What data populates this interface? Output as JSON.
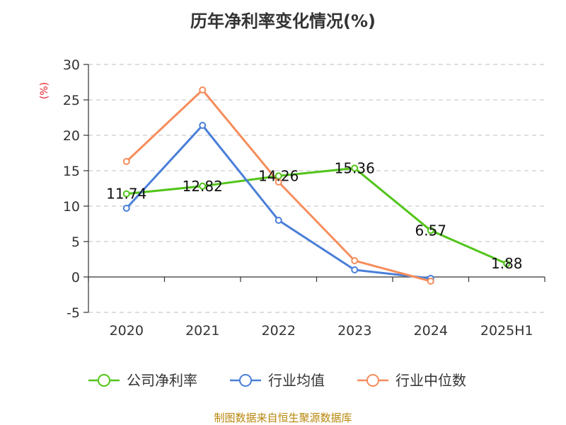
{
  "source": "制图数据来自恒生聚源数据库",
  "chart_data": {
    "type": "line",
    "title": "历年净利率变化情况(%)",
    "ylabel": "(%)",
    "xlabel": "",
    "categories": [
      "2020",
      "2021",
      "2022",
      "2023",
      "2024",
      "2025H1"
    ],
    "ylim": [
      -5,
      30
    ],
    "yticks": [
      -5,
      0,
      5,
      10,
      15,
      20,
      25,
      30
    ],
    "grid": true,
    "legend_position": "bottom",
    "series": [
      {
        "name": "公司净利率",
        "color": "#52c41a",
        "values": [
          11.74,
          12.82,
          14.26,
          15.36,
          6.57,
          1.88
        ],
        "labels": [
          "11.74",
          "12.82",
          "14.26",
          "15.36",
          "6.57",
          "1.88"
        ]
      },
      {
        "name": "行业均值",
        "color": "#4a7fd9",
        "values": [
          9.7,
          21.4,
          8.0,
          1.0,
          -0.2,
          null
        ]
      },
      {
        "name": "行业中位数",
        "color": "#f58d5c",
        "values": [
          16.3,
          26.4,
          13.4,
          2.3,
          -0.6,
          null
        ]
      }
    ]
  }
}
